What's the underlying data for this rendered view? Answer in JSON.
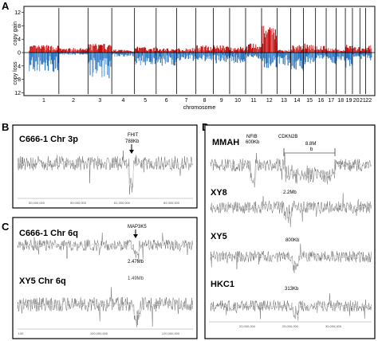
{
  "panel_a": {
    "letter": "A",
    "y_gain_label": "copy gain",
    "y_loss_label": "copy loss",
    "x_label": "chromosome",
    "y_ticks": [
      "12",
      "8",
      "4",
      "0",
      "4",
      "8",
      "12"
    ],
    "chromosomes": [
      "1",
      "2",
      "3",
      "4",
      "5",
      "6",
      "7",
      "8",
      "9",
      "10",
      "11",
      "12",
      "13",
      "14",
      "15",
      "16",
      "17",
      "18",
      "19",
      "20",
      "21",
      "22"
    ],
    "colors": {
      "gain": "#c00000",
      "loss": "#1f6fbf",
      "divider": "#000000"
    }
  },
  "panel_b": {
    "letter": "B",
    "title": "C666-1  Chr 3p",
    "gene": "FHIT",
    "size": "788Kb",
    "axis_ticks": [
      "50,000,000",
      "59,000,000",
      "61,300,000",
      "",
      "69,300,000"
    ]
  },
  "panel_c": {
    "letter": "C",
    "title_top": "C666-1  Chr 6q",
    "gene": "MAP3K5",
    "size_top": "2.47Mb",
    "title_bottom": "XY5  Chr 6q",
    "size_bottom": "1.49Mb",
    "axis_ticks": [
      "100",
      "100,000,000",
      "120,000,000"
    ]
  },
  "panel_d": {
    "letter": "D",
    "tracks": [
      {
        "name": "MMAH",
        "gene1": "NFIB",
        "size1": "600Kb",
        "gene2": "CDKN2B",
        "size2": "8.8M",
        "extra": "b"
      },
      {
        "name": "XY8",
        "size": "2.2Mb"
      },
      {
        "name": "XY5",
        "size": "800Kb"
      },
      {
        "name": "HKC1",
        "size": "313Kb"
      }
    ],
    "axis_ticks": [
      "20,000,000",
      "25,000,000",
      "30,000,000"
    ]
  }
}
